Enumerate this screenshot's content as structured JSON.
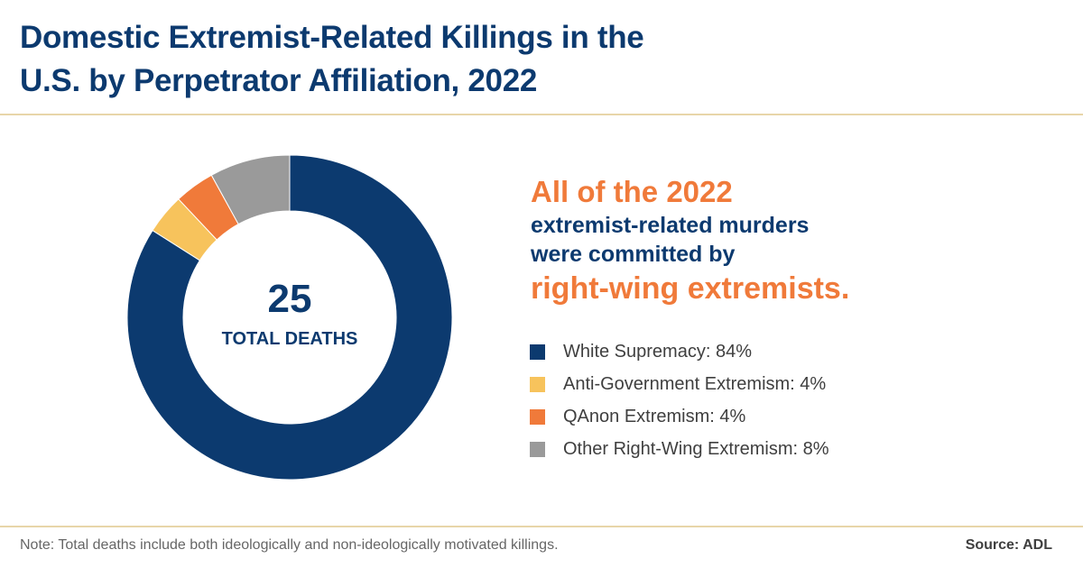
{
  "header": {
    "title_line1": "Domestic Extremist-Related Killings in the",
    "title_line2": "U.S. by Perpetrator Affiliation, 2022"
  },
  "donut": {
    "center_value": "25",
    "center_label": "TOTAL DEATHS"
  },
  "callout": {
    "line1": "All of the 2022",
    "line2": "extremist-related murders",
    "line3": "were committed by",
    "line4": "right-wing extremists."
  },
  "legend": [
    {
      "label": "White Supremacy: 84%",
      "color": "#0c3a6f"
    },
    {
      "label": "Anti-Government Extremism: 4%",
      "color": "#f7c35c"
    },
    {
      "label": "QAnon Extremism: 4%",
      "color": "#f07a3a"
    },
    {
      "label": "Other Right-Wing Extremism: 8%",
      "color": "#9a9a9a"
    }
  ],
  "footer": {
    "note": "Note: Total deaths include both ideologically and non-ideologically motivated killings.",
    "source": "Source: ADL"
  },
  "colors": {
    "navy": "#0c3a6f",
    "orange": "#f07a3a",
    "yellow": "#f7c35c",
    "gray": "#9a9a9a",
    "rule": "#e8d6a9"
  },
  "chart_data": {
    "type": "pie",
    "subtype": "donut",
    "title": "Domestic Extremist-Related Killings in the U.S. by Perpetrator Affiliation, 2022",
    "categories": [
      "White Supremacy",
      "Anti-Government Extremism",
      "QAnon Extremism",
      "Other Right-Wing Extremism"
    ],
    "values": [
      84,
      4,
      4,
      8
    ],
    "unit": "%",
    "colors": [
      "#0c3a6f",
      "#f7c35c",
      "#f07a3a",
      "#9a9a9a"
    ],
    "total": 25,
    "center_text": "25 TOTAL DEATHS",
    "start_angle": "12 o'clock",
    "direction": "clockwise",
    "legend_position": "right",
    "annotation": "All of the 2022 extremist-related murders were committed by right-wing extremists.",
    "note": "Note: Total deaths include both ideologically and non-ideologically motivated killings.",
    "source": "Source: ADL"
  }
}
